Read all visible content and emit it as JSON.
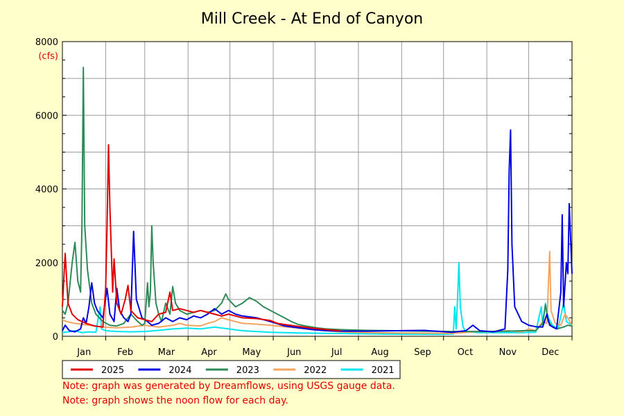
{
  "chart_data": {
    "type": "line",
    "title": "Mill Creek - At End of Canyon",
    "ylabel": "(cfs)",
    "ylim": [
      0,
      8000
    ],
    "yticks": [
      0,
      2000,
      4000,
      6000,
      8000
    ],
    "xlim": [
      1,
      366
    ],
    "months": [
      "Jan",
      "Feb",
      "Mar",
      "Apr",
      "May",
      "Jun",
      "Jul",
      "Aug",
      "Sep",
      "Oct",
      "Nov",
      "Dec"
    ],
    "grid": true,
    "legend_position": "bottom",
    "series": [
      {
        "name": "2025",
        "color": "#e00000",
        "points": [
          [
            1,
            800
          ],
          [
            3,
            2250
          ],
          [
            5,
            900
          ],
          [
            8,
            600
          ],
          [
            12,
            450
          ],
          [
            18,
            350
          ],
          [
            24,
            280
          ],
          [
            30,
            250
          ],
          [
            32,
            1300
          ],
          [
            33,
            3000
          ],
          [
            34,
            5200
          ],
          [
            35,
            3500
          ],
          [
            37,
            1200
          ],
          [
            38,
            2100
          ],
          [
            40,
            900
          ],
          [
            43,
            600
          ],
          [
            46,
            1000
          ],
          [
            48,
            1380
          ],
          [
            50,
            700
          ],
          [
            55,
            500
          ],
          [
            60,
            450
          ],
          [
            65,
            400
          ],
          [
            70,
            600
          ],
          [
            75,
            650
          ],
          [
            78,
            1200
          ],
          [
            80,
            700
          ],
          [
            85,
            750
          ],
          [
            90,
            700
          ],
          [
            95,
            650
          ],
          [
            100,
            700
          ],
          [
            105,
            650
          ],
          [
            110,
            600
          ],
          [
            115,
            550
          ],
          [
            120,
            600
          ],
          [
            125,
            550
          ],
          [
            130,
            500
          ],
          [
            140,
            480
          ],
          [
            150,
            430
          ],
          [
            155,
            350
          ],
          [
            160,
            320
          ],
          [
            170,
            270
          ],
          [
            180,
            220
          ],
          [
            190,
            180
          ],
          [
            200,
            150
          ]
        ]
      },
      {
        "name": "2024",
        "color": "#0000e0",
        "points": [
          [
            1,
            150
          ],
          [
            3,
            300
          ],
          [
            6,
            150
          ],
          [
            10,
            120
          ],
          [
            14,
            200
          ],
          [
            16,
            500
          ],
          [
            18,
            350
          ],
          [
            20,
            800
          ],
          [
            22,
            1450
          ],
          [
            24,
            900
          ],
          [
            26,
            700
          ],
          [
            30,
            500
          ],
          [
            33,
            1300
          ],
          [
            35,
            600
          ],
          [
            38,
            400
          ],
          [
            40,
            1300
          ],
          [
            42,
            700
          ],
          [
            45,
            500
          ],
          [
            48,
            400
          ],
          [
            50,
            600
          ],
          [
            52,
            2850
          ],
          [
            54,
            1000
          ],
          [
            58,
            500
          ],
          [
            62,
            400
          ],
          [
            65,
            300
          ],
          [
            70,
            350
          ],
          [
            75,
            500
          ],
          [
            80,
            400
          ],
          [
            85,
            500
          ],
          [
            90,
            450
          ],
          [
            95,
            550
          ],
          [
            100,
            500
          ],
          [
            105,
            600
          ],
          [
            110,
            750
          ],
          [
            115,
            600
          ],
          [
            120,
            700
          ],
          [
            125,
            600
          ],
          [
            130,
            550
          ],
          [
            140,
            500
          ],
          [
            150,
            400
          ],
          [
            160,
            280
          ],
          [
            170,
            230
          ],
          [
            180,
            180
          ],
          [
            190,
            150
          ],
          [
            200,
            140
          ],
          [
            220,
            140
          ],
          [
            240,
            150
          ],
          [
            260,
            160
          ],
          [
            280,
            110
          ],
          [
            290,
            150
          ],
          [
            295,
            300
          ],
          [
            300,
            150
          ],
          [
            310,
            120
          ],
          [
            318,
            200
          ],
          [
            320,
            1800
          ],
          [
            321,
            4500
          ],
          [
            322,
            5600
          ],
          [
            323,
            2500
          ],
          [
            325,
            800
          ],
          [
            330,
            400
          ],
          [
            335,
            300
          ],
          [
            340,
            260
          ],
          [
            345,
            250
          ],
          [
            348,
            600
          ],
          [
            350,
            300
          ],
          [
            355,
            200
          ],
          [
            358,
            1200
          ],
          [
            359,
            3300
          ],
          [
            360,
            800
          ],
          [
            362,
            2000
          ],
          [
            363,
            1700
          ],
          [
            364,
            3600
          ],
          [
            366,
            1700
          ]
        ]
      },
      {
        "name": "2023",
        "color": "#2e8b57",
        "points": [
          [
            1,
            700
          ],
          [
            3,
            600
          ],
          [
            5,
            900
          ],
          [
            8,
            2000
          ],
          [
            10,
            2550
          ],
          [
            12,
            1500
          ],
          [
            14,
            1200
          ],
          [
            15,
            3000
          ],
          [
            16,
            7300
          ],
          [
            17,
            3000
          ],
          [
            19,
            1800
          ],
          [
            22,
            900
          ],
          [
            25,
            600
          ],
          [
            30,
            400
          ],
          [
            35,
            300
          ],
          [
            40,
            280
          ],
          [
            45,
            350
          ],
          [
            50,
            600
          ],
          [
            55,
            400
          ],
          [
            58,
            300
          ],
          [
            60,
            350
          ],
          [
            62,
            1450
          ],
          [
            63,
            800
          ],
          [
            64,
            1200
          ],
          [
            65,
            3000
          ],
          [
            66,
            2000
          ],
          [
            68,
            900
          ],
          [
            70,
            600
          ],
          [
            72,
            400
          ],
          [
            75,
            900
          ],
          [
            78,
            600
          ],
          [
            80,
            1350
          ],
          [
            82,
            900
          ],
          [
            85,
            700
          ],
          [
            90,
            600
          ],
          [
            95,
            650
          ],
          [
            100,
            700
          ],
          [
            105,
            650
          ],
          [
            110,
            700
          ],
          [
            115,
            900
          ],
          [
            118,
            1150
          ],
          [
            120,
            1000
          ],
          [
            125,
            800
          ],
          [
            130,
            900
          ],
          [
            135,
            1050
          ],
          [
            140,
            950
          ],
          [
            145,
            800
          ],
          [
            150,
            700
          ],
          [
            155,
            600
          ],
          [
            160,
            500
          ],
          [
            165,
            400
          ],
          [
            170,
            320
          ],
          [
            175,
            280
          ],
          [
            180,
            250
          ],
          [
            185,
            220
          ],
          [
            190,
            200
          ],
          [
            195,
            190
          ],
          [
            200,
            180
          ],
          [
            210,
            170
          ],
          [
            220,
            160
          ],
          [
            240,
            150
          ],
          [
            260,
            140
          ],
          [
            280,
            130
          ],
          [
            300,
            130
          ],
          [
            320,
            140
          ],
          [
            330,
            150
          ],
          [
            340,
            150
          ],
          [
            345,
            350
          ],
          [
            347,
            850
          ],
          [
            349,
            400
          ],
          [
            352,
            250
          ],
          [
            355,
            200
          ],
          [
            360,
            250
          ],
          [
            363,
            300
          ],
          [
            366,
            280
          ]
        ]
      },
      {
        "name": "2022",
        "color": "#f4a460",
        "points": [
          [
            1,
            450
          ],
          [
            4,
            400
          ],
          [
            10,
            350
          ],
          [
            20,
            300
          ],
          [
            30,
            250
          ],
          [
            40,
            230
          ],
          [
            50,
            250
          ],
          [
            60,
            300
          ],
          [
            70,
            250
          ],
          [
            80,
            300
          ],
          [
            85,
            350
          ],
          [
            90,
            300
          ],
          [
            100,
            280
          ],
          [
            105,
            350
          ],
          [
            110,
            400
          ],
          [
            115,
            500
          ],
          [
            120,
            450
          ],
          [
            125,
            400
          ],
          [
            130,
            350
          ],
          [
            140,
            330
          ],
          [
            150,
            300
          ],
          [
            160,
            260
          ],
          [
            170,
            220
          ],
          [
            180,
            180
          ],
          [
            190,
            150
          ],
          [
            200,
            120
          ],
          [
            220,
            100
          ],
          [
            240,
            90
          ],
          [
            260,
            85
          ],
          [
            280,
            80
          ],
          [
            300,
            130
          ],
          [
            310,
            120
          ],
          [
            320,
            150
          ],
          [
            330,
            120
          ],
          [
            335,
            200
          ],
          [
            340,
            150
          ],
          [
            345,
            400
          ],
          [
            348,
            350
          ],
          [
            350,
            2300
          ],
          [
            351,
            700
          ],
          [
            354,
            350
          ],
          [
            358,
            300
          ],
          [
            361,
            600
          ],
          [
            363,
            500
          ],
          [
            366,
            300
          ]
        ]
      },
      {
        "name": "2021",
        "color": "#00e5ee",
        "points": [
          [
            1,
            100
          ],
          [
            5,
            120
          ],
          [
            10,
            150
          ],
          [
            15,
            100
          ],
          [
            20,
            120
          ],
          [
            25,
            110
          ],
          [
            28,
            800
          ],
          [
            29,
            200
          ],
          [
            32,
            150
          ],
          [
            40,
            130
          ],
          [
            50,
            120
          ],
          [
            60,
            130
          ],
          [
            70,
            160
          ],
          [
            80,
            200
          ],
          [
            90,
            220
          ],
          [
            100,
            200
          ],
          [
            110,
            250
          ],
          [
            120,
            200
          ],
          [
            130,
            150
          ],
          [
            140,
            130
          ],
          [
            150,
            110
          ],
          [
            170,
            90
          ],
          [
            190,
            80
          ],
          [
            210,
            70
          ],
          [
            230,
            60
          ],
          [
            250,
            55
          ],
          [
            270,
            50
          ],
          [
            281,
            60
          ],
          [
            282,
            800
          ],
          [
            283,
            200
          ],
          [
            284,
            1000
          ],
          [
            285,
            2000
          ],
          [
            286,
            800
          ],
          [
            288,
            250
          ],
          [
            290,
            120
          ],
          [
            300,
            100
          ],
          [
            310,
            100
          ],
          [
            320,
            100
          ],
          [
            330,
            100
          ],
          [
            340,
            110
          ],
          [
            344,
            800
          ],
          [
            345,
            300
          ],
          [
            347,
            900
          ],
          [
            349,
            500
          ],
          [
            352,
            300
          ],
          [
            356,
            200
          ],
          [
            360,
            900
          ],
          [
            362,
            400
          ],
          [
            366,
            300
          ]
        ]
      }
    ]
  },
  "notes": [
    "Note: graph was generated by Dreamflows, using USGS gauge data.",
    "Note: graph shows the noon flow for each day."
  ]
}
